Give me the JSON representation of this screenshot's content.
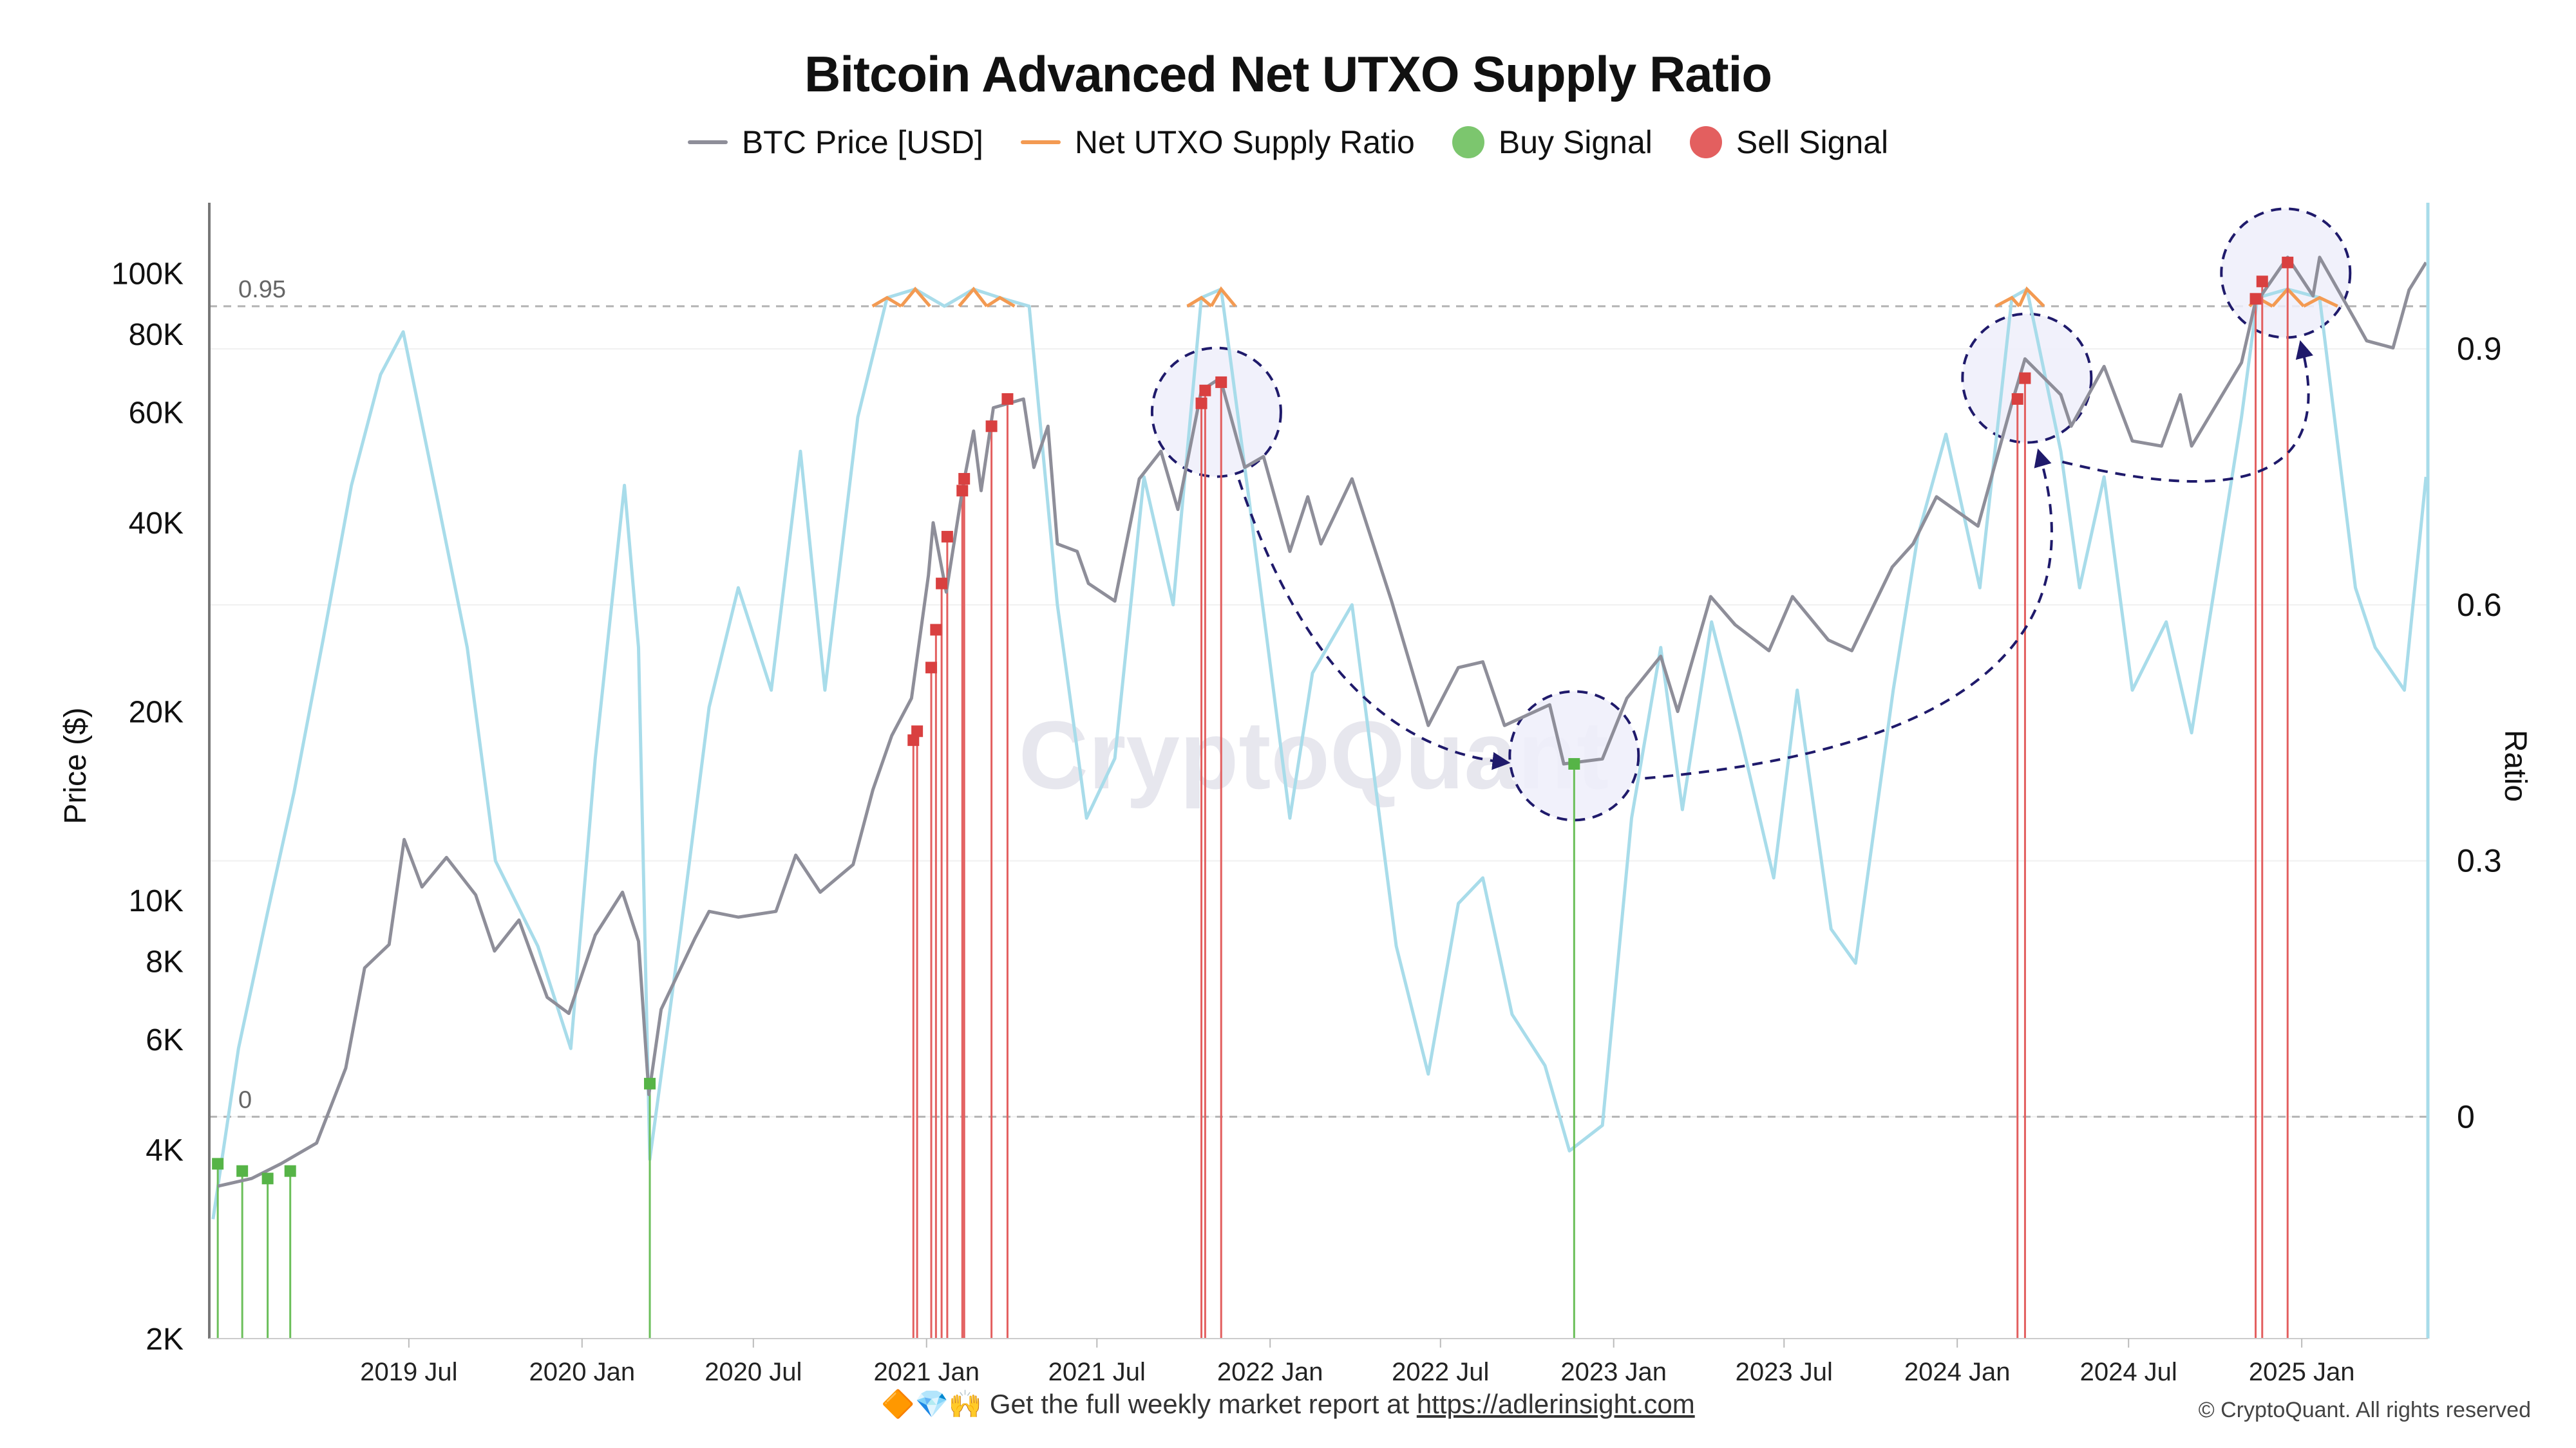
{
  "chart_data": {
    "type": "line",
    "title": "Bitcoin Advanced Net UTXO Supply Ratio",
    "legend": [
      {
        "name": "BTC Price [USD]",
        "color": "#8e8e99",
        "kind": "line"
      },
      {
        "name": "Net UTXO Supply Ratio",
        "color": "#f39a52",
        "kind": "line"
      },
      {
        "name": "Buy Signal",
        "color": "#7cc66e",
        "kind": "dot"
      },
      {
        "name": "Sell Signal",
        "color": "#e35f5f",
        "kind": "dot"
      }
    ],
    "legend_position": "top-center",
    "xlim": [
      "2018-12-01",
      "2025-05-15"
    ],
    "x_ticks": [
      "2019 Jul",
      "2020 Jan",
      "2020 Jul",
      "2021 Jan",
      "2021 Jul",
      "2022 Jan",
      "2022 Jul",
      "2023 Jan",
      "2023 Jul",
      "2024 Jan",
      "2024 Jul",
      "2025 Jan"
    ],
    "x_tick_dates": [
      "2019-07-01",
      "2020-01-01",
      "2020-07-01",
      "2021-01-01",
      "2021-07-01",
      "2022-01-01",
      "2022-07-01",
      "2023-01-01",
      "2023-07-01",
      "2024-01-01",
      "2024-07-01",
      "2025-01-01"
    ],
    "y_left": {
      "label": "Price ($)",
      "scale": "log",
      "ylim": [
        2000,
        125000
      ],
      "ticks": [
        2000,
        4000,
        6000,
        8000,
        10000,
        20000,
        40000,
        60000,
        80000,
        100000
      ],
      "tick_labels": [
        "2K",
        "4K",
        "6K",
        "8K",
        "10K",
        "20K",
        "40K",
        "60K",
        "80K",
        "100K"
      ]
    },
    "y_right": {
      "label": "Ratio",
      "scale": "linear",
      "ylim": [
        -0.26,
        1.06
      ],
      "ticks": [
        0,
        0.3,
        0.6,
        0.9
      ],
      "tick_labels": [
        "0",
        "0.3",
        "0.6",
        "0.9"
      ]
    },
    "reference_lines": [
      {
        "value": 0.95,
        "label": "0.95",
        "style": "dashed",
        "axis": "right"
      },
      {
        "value": 0,
        "label": "0",
        "style": "dashed",
        "axis": "right"
      }
    ],
    "grid": true,
    "watermark": "CryptoQuant",
    "series": [
      {
        "name": "BTC Price [USD]",
        "axis": "left",
        "color": "#8e8e99",
        "points": [
          [
            "2018-12-10",
            3500
          ],
          [
            "2019-01-15",
            3600
          ],
          [
            "2019-02-15",
            3800
          ],
          [
            "2019-03-25",
            4100
          ],
          [
            "2019-04-25",
            5400
          ],
          [
            "2019-05-15",
            7800
          ],
          [
            "2019-06-10",
            8500
          ],
          [
            "2019-06-26",
            12500
          ],
          [
            "2019-07-15",
            10500
          ],
          [
            "2019-08-10",
            11700
          ],
          [
            "2019-09-10",
            10200
          ],
          [
            "2019-09-30",
            8300
          ],
          [
            "2019-10-26",
            9300
          ],
          [
            "2019-11-25",
            7000
          ],
          [
            "2019-12-18",
            6600
          ],
          [
            "2020-01-15",
            8800
          ],
          [
            "2020-02-13",
            10300
          ],
          [
            "2020-03-01",
            8600
          ],
          [
            "2020-03-12",
            4900
          ],
          [
            "2020-03-25",
            6700
          ],
          [
            "2020-04-30",
            8700
          ],
          [
            "2020-05-15",
            9600
          ],
          [
            "2020-06-15",
            9400
          ],
          [
            "2020-07-25",
            9600
          ],
          [
            "2020-08-15",
            11800
          ],
          [
            "2020-09-10",
            10300
          ],
          [
            "2020-10-15",
            11400
          ],
          [
            "2020-11-05",
            15000
          ],
          [
            "2020-11-25",
            18300
          ],
          [
            "2020-12-16",
            21000
          ],
          [
            "2021-01-03",
            33000
          ],
          [
            "2021-01-08",
            40000
          ],
          [
            "2021-01-22",
            31000
          ],
          [
            "2021-02-09",
            46000
          ],
          [
            "2021-02-20",
            56000
          ],
          [
            "2021-02-28",
            45000
          ],
          [
            "2021-03-13",
            61000
          ],
          [
            "2021-04-14",
            63000
          ],
          [
            "2021-04-25",
            49000
          ],
          [
            "2021-05-10",
            57000
          ],
          [
            "2021-05-20",
            37000
          ],
          [
            "2021-06-10",
            36000
          ],
          [
            "2021-06-22",
            32000
          ],
          [
            "2021-07-20",
            30000
          ],
          [
            "2021-08-15",
            47000
          ],
          [
            "2021-09-07",
            52000
          ],
          [
            "2021-09-25",
            42000
          ],
          [
            "2021-10-20",
            65000
          ],
          [
            "2021-11-09",
            68000
          ],
          [
            "2021-12-05",
            49000
          ],
          [
            "2021-12-25",
            51000
          ],
          [
            "2022-01-22",
            36000
          ],
          [
            "2022-02-10",
            44000
          ],
          [
            "2022-02-24",
            37000
          ],
          [
            "2022-03-29",
            47000
          ],
          [
            "2022-05-10",
            30000
          ],
          [
            "2022-06-18",
            19000
          ],
          [
            "2022-07-20",
            23500
          ],
          [
            "2022-08-15",
            24000
          ],
          [
            "2022-09-07",
            19000
          ],
          [
            "2022-10-25",
            20500
          ],
          [
            "2022-11-09",
            16500
          ],
          [
            "2022-12-20",
            16800
          ],
          [
            "2023-01-15",
            21000
          ],
          [
            "2023-02-20",
            24500
          ],
          [
            "2023-03-10",
            20000
          ],
          [
            "2023-04-14",
            30500
          ],
          [
            "2023-05-10",
            27500
          ],
          [
            "2023-06-15",
            25000
          ],
          [
            "2023-07-10",
            30500
          ],
          [
            "2023-08-17",
            26000
          ],
          [
            "2023-09-11",
            25000
          ],
          [
            "2023-10-24",
            34000
          ],
          [
            "2023-11-15",
            37000
          ],
          [
            "2023-12-10",
            44000
          ],
          [
            "2024-01-23",
            39500
          ],
          [
            "2024-02-28",
            62000
          ],
          [
            "2024-03-13",
            73000
          ],
          [
            "2024-04-20",
            64000
          ],
          [
            "2024-05-01",
            57000
          ],
          [
            "2024-06-05",
            71000
          ],
          [
            "2024-07-05",
            54000
          ],
          [
            "2024-08-05",
            53000
          ],
          [
            "2024-08-25",
            64000
          ],
          [
            "2024-09-06",
            53000
          ],
          [
            "2024-10-29",
            72000
          ],
          [
            "2024-11-12",
            89000
          ],
          [
            "2024-12-17",
            106000
          ],
          [
            "2025-01-13",
            92000
          ],
          [
            "2025-01-20",
            106000
          ],
          [
            "2025-02-27",
            84000
          ],
          [
            "2025-03-11",
            78000
          ],
          [
            "2025-04-08",
            76000
          ],
          [
            "2025-04-25",
            94000
          ],
          [
            "2025-05-13",
            104000
          ]
        ]
      },
      {
        "name": "Net UTXO Supply Ratio",
        "axis": "right",
        "color": "#a8dcea",
        "above_threshold_color": "#f39a52",
        "threshold": 0.95,
        "points": [
          [
            "2018-12-05",
            -0.12
          ],
          [
            "2019-01-01",
            0.08
          ],
          [
            "2019-02-01",
            0.24
          ],
          [
            "2019-03-01",
            0.38
          ],
          [
            "2019-04-01",
            0.56
          ],
          [
            "2019-05-01",
            0.74
          ],
          [
            "2019-06-01",
            0.87
          ],
          [
            "2019-06-25",
            0.92
          ],
          [
            "2019-08-01",
            0.72
          ],
          [
            "2019-09-01",
            0.55
          ],
          [
            "2019-10-01",
            0.3
          ],
          [
            "2019-11-15",
            0.2
          ],
          [
            "2019-12-20",
            0.08
          ],
          [
            "2020-01-15",
            0.42
          ],
          [
            "2020-02-15",
            0.74
          ],
          [
            "2020-03-01",
            0.55
          ],
          [
            "2020-03-13",
            -0.05
          ],
          [
            "2020-04-15",
            0.22
          ],
          [
            "2020-05-15",
            0.48
          ],
          [
            "2020-06-15",
            0.62
          ],
          [
            "2020-07-20",
            0.5
          ],
          [
            "2020-08-20",
            0.78
          ],
          [
            "2020-09-15",
            0.5
          ],
          [
            "2020-10-20",
            0.82
          ],
          [
            "2020-11-20",
            0.96
          ],
          [
            "2020-12-20",
            0.97
          ],
          [
            "2021-01-20",
            0.95
          ],
          [
            "2021-02-20",
            0.97
          ],
          [
            "2021-03-20",
            0.96
          ],
          [
            "2021-04-20",
            0.95
          ],
          [
            "2021-05-20",
            0.6
          ],
          [
            "2021-06-20",
            0.35
          ],
          [
            "2021-07-20",
            0.42
          ],
          [
            "2021-08-20",
            0.75
          ],
          [
            "2021-09-20",
            0.6
          ],
          [
            "2021-10-20",
            0.96
          ],
          [
            "2021-11-10",
            0.97
          ],
          [
            "2021-12-10",
            0.72
          ],
          [
            "2022-01-22",
            0.35
          ],
          [
            "2022-02-15",
            0.52
          ],
          [
            "2022-03-29",
            0.6
          ],
          [
            "2022-05-15",
            0.2
          ],
          [
            "2022-06-18",
            0.05
          ],
          [
            "2022-07-20",
            0.25
          ],
          [
            "2022-08-15",
            0.28
          ],
          [
            "2022-09-15",
            0.12
          ],
          [
            "2022-10-20",
            0.06
          ],
          [
            "2022-11-15",
            -0.04
          ],
          [
            "2022-12-20",
            -0.01
          ],
          [
            "2023-01-20",
            0.35
          ],
          [
            "2023-02-20",
            0.55
          ],
          [
            "2023-03-15",
            0.36
          ],
          [
            "2023-04-15",
            0.58
          ],
          [
            "2023-05-15",
            0.45
          ],
          [
            "2023-06-20",
            0.28
          ],
          [
            "2023-07-15",
            0.5
          ],
          [
            "2023-08-20",
            0.22
          ],
          [
            "2023-09-15",
            0.18
          ],
          [
            "2023-10-25",
            0.5
          ],
          [
            "2023-11-20",
            0.68
          ],
          [
            "2023-12-20",
            0.8
          ],
          [
            "2024-01-25",
            0.62
          ],
          [
            "2024-02-28",
            0.96
          ],
          [
            "2024-03-15",
            0.97
          ],
          [
            "2024-04-20",
            0.78
          ],
          [
            "2024-05-10",
            0.62
          ],
          [
            "2024-06-05",
            0.75
          ],
          [
            "2024-07-05",
            0.5
          ],
          [
            "2024-08-10",
            0.58
          ],
          [
            "2024-09-06",
            0.45
          ],
          [
            "2024-10-29",
            0.82
          ],
          [
            "2024-11-15",
            0.96
          ],
          [
            "2024-12-17",
            0.97
          ],
          [
            "2025-01-20",
            0.96
          ],
          [
            "2025-02-27",
            0.62
          ],
          [
            "2025-03-20",
            0.55
          ],
          [
            "2025-04-20",
            0.5
          ],
          [
            "2025-05-13",
            0.75
          ]
        ]
      }
    ],
    "buy_signals": [
      {
        "date": "2018-12-10",
        "price": 3800
      },
      {
        "date": "2019-01-05",
        "price": 3700
      },
      {
        "date": "2019-02-01",
        "price": 3600
      },
      {
        "date": "2019-02-25",
        "price": 3700
      },
      {
        "date": "2020-03-13",
        "price": 5100
      },
      {
        "date": "2022-11-20",
        "price": 16500
      }
    ],
    "sell_signals": [
      {
        "date": "2020-12-18",
        "price": 18000
      },
      {
        "date": "2020-12-22",
        "price": 18600
      },
      {
        "date": "2021-01-06",
        "price": 23500
      },
      {
        "date": "2021-01-11",
        "price": 27000
      },
      {
        "date": "2021-01-17",
        "price": 32000
      },
      {
        "date": "2021-01-23",
        "price": 38000
      },
      {
        "date": "2021-02-08",
        "price": 45000
      },
      {
        "date": "2021-02-10",
        "price": 47000
      },
      {
        "date": "2021-03-11",
        "price": 57000
      },
      {
        "date": "2021-03-28",
        "price": 63000
      },
      {
        "date": "2021-10-20",
        "price": 62000
      },
      {
        "date": "2021-10-24",
        "price": 65000
      },
      {
        "date": "2021-11-10",
        "price": 67000
      },
      {
        "date": "2024-03-05",
        "price": 63000
      },
      {
        "date": "2024-03-13",
        "price": 68000
      },
      {
        "date": "2024-11-13",
        "price": 91000
      },
      {
        "date": "2024-11-20",
        "price": 97000
      },
      {
        "date": "2024-12-17",
        "price": 104000
      }
    ],
    "annotations": [
      {
        "type": "circle",
        "date": "2021-11-05",
        "price": 60000
      },
      {
        "type": "circle",
        "date": "2022-11-20",
        "price": 17000
      },
      {
        "type": "circle",
        "date": "2024-03-15",
        "price": 68000
      },
      {
        "type": "circle",
        "date": "2024-12-15",
        "price": 100000
      },
      {
        "type": "dashed-arrow",
        "from": "2022-01-22",
        "to": "2022-10-01"
      },
      {
        "type": "dashed-arrow",
        "from": "2023-01-20",
        "to": "2024-03-01"
      },
      {
        "type": "dashed-arrow",
        "from": "2024-05-01",
        "to": "2024-11-01"
      }
    ]
  },
  "footer": {
    "emoji": "🔶💎🙌",
    "text": "Get the full weekly market report at",
    "link": "https://adlerinsight.com"
  },
  "copyright": "© CryptoQuant. All rights reserved"
}
